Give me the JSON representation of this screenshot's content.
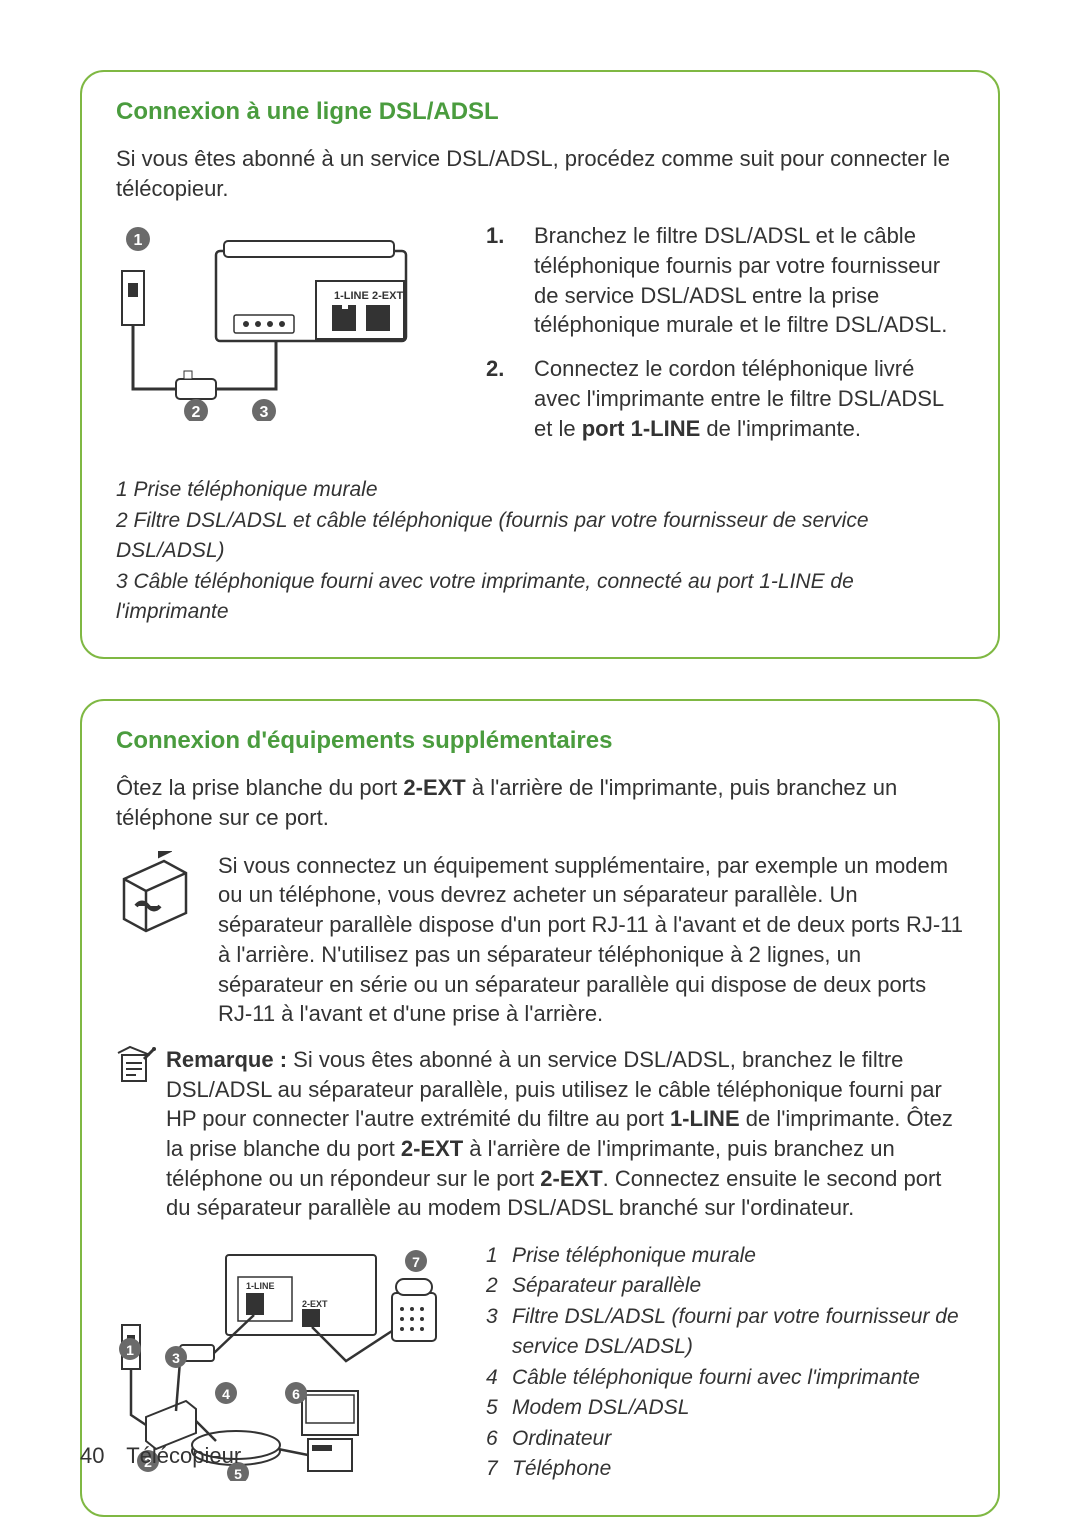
{
  "panel1": {
    "title": "Connexion à une ligne DSL/ADSL",
    "intro": "Si vous êtes abonné à un service DSL/ADSL, procédez comme suit pour connecter le télécopieur.",
    "steps": [
      {
        "num": "1.",
        "text": "Branchez le filtre DSL/ADSL et le câble téléphonique fournis par votre fournisseur de service DSL/ADSL entre la prise téléphonique murale et le filtre DSL/ADSL."
      },
      {
        "num": "2.",
        "text_html": "Connectez le cordon téléphonique livré avec l'imprimante entre le filtre DSL/ADSL et le <b>port 1-LINE</b> de l'imprimante."
      }
    ],
    "legend": [
      "1 Prise téléphonique murale",
      "2 Filtre DSL/ADSL et câble téléphonique (fournis par votre fournisseur de service DSL/ADSL)",
      "3 Câble téléphonique fourni avec votre imprimante, connecté au port 1-LINE de l'imprimante"
    ],
    "diagram": {
      "port_labels": [
        "1-LINE",
        "2-EXT"
      ],
      "callouts": [
        1,
        2,
        3
      ],
      "callout_color": "#6a6a6a",
      "line_color": "#333333"
    }
  },
  "panel2": {
    "title": "Connexion d'équipements supplémentaires",
    "intro_html": "Ôtez la prise blanche du port <b>2-EXT</b> à l'arrière de l'imprimante, puis branchez un téléphone sur ce port.",
    "splitter_text": "Si vous connectez un équipement supplémentaire, par exemple un modem ou un téléphone, vous devrez acheter un séparateur parallèle. Un séparateur parallèle dispose d'un port RJ-11 à l'avant et de deux ports RJ-11 à l'arrière. N'utilisez pas un séparateur téléphonique à 2 lignes, un séparateur en série ou un séparateur parallèle qui dispose de deux ports RJ-11 à l'avant et d'une prise à l'arrière.",
    "note_label": "Remarque :",
    "note_html": "Si vous êtes abonné à un service DSL/ADSL, branchez le filtre DSL/ADSL au séparateur parallèle, puis utilisez le câble téléphonique fourni par HP pour connecter l'autre extrémité du filtre au port <b>1-LINE</b> de l'imprimante. Ôtez la prise blanche du port <b>2-EXT</b> à l'arrière de l'imprimante, puis branchez un téléphone ou un répondeur sur le port <b>2-EXT</b>. Connectez ensuite le second port du séparateur parallèle au modem DSL/ADSL branché sur l'ordinateur.",
    "legend": [
      {
        "num": "1",
        "text": "Prise téléphonique murale"
      },
      {
        "num": "2",
        "text": "Séparateur parallèle"
      },
      {
        "num": "3",
        "text": "Filtre DSL/ADSL (fourni par votre fournisseur de service DSL/ADSL)"
      },
      {
        "num": "4",
        "text": "Câble téléphonique fourni avec l'imprimante"
      },
      {
        "num": "5",
        "text": "Modem DSL/ADSL"
      },
      {
        "num": "6",
        "text": "Ordinateur"
      },
      {
        "num": "7",
        "text": "Téléphone"
      }
    ],
    "diagram": {
      "port_labels": [
        "1-LINE",
        "2-EXT"
      ],
      "callouts": [
        1,
        2,
        3,
        4,
        5,
        6,
        7
      ],
      "callout_color": "#6a6a6a",
      "line_color": "#333333"
    }
  },
  "footer": {
    "page": "40",
    "section": "Télécopieur"
  },
  "colors": {
    "panel_border": "#7fb843",
    "title": "#4a9c3e",
    "text": "#333333",
    "callout_fill": "#6a6a6a"
  }
}
